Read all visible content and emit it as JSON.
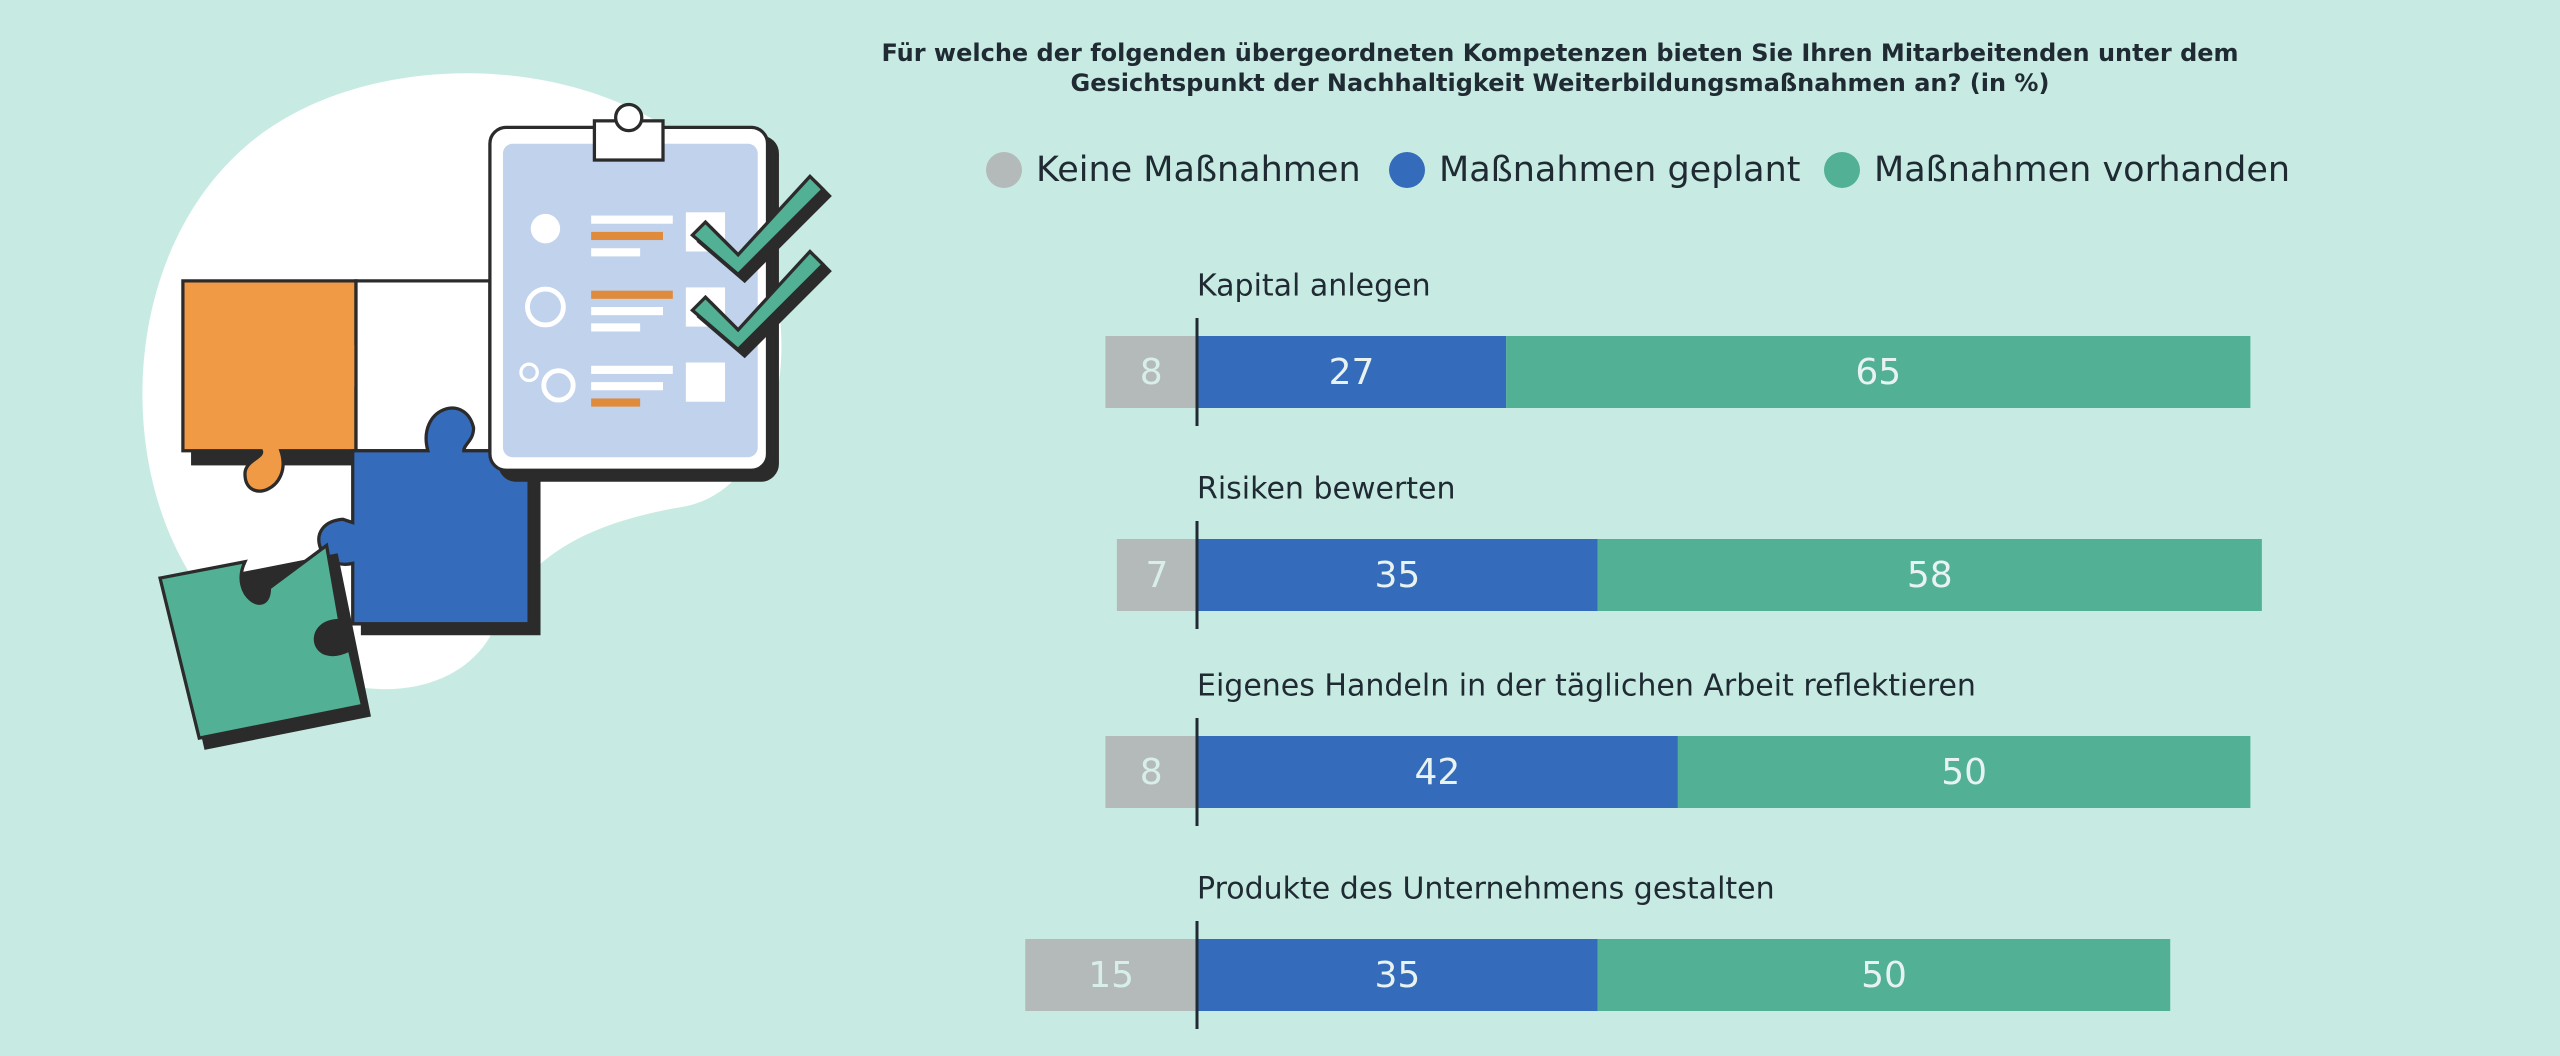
{
  "chart_data": {
    "type": "diverging_stacked_bar",
    "title": "Für welche der folgenden übergeordneten Kompetenzen bieten Sie Ihren Mitarbeitenden unter dem Gesichtspunkt der Nachhaltigkeit Weiterbildungsmaßnahmen an? (in %)",
    "categories": [
      "Kapital anlegen",
      "Risiken bewerten",
      "Eigenes Handeln in der täglichen Arbeit reflektieren",
      "Produkte des Unternehmens gestalten"
    ],
    "series": [
      {
        "name": "Keine Maßnahmen",
        "color": "#b4b9b9",
        "values": [
          8,
          7,
          8,
          15
        ]
      },
      {
        "name": "Maßnahmen geplant",
        "color": "#356bbb",
        "values": [
          27,
          35,
          42,
          35
        ]
      },
      {
        "name": "Maßnahmen vorhanden",
        "color": "#52b094",
        "values": [
          65,
          58,
          50,
          50
        ]
      }
    ]
  }
}
